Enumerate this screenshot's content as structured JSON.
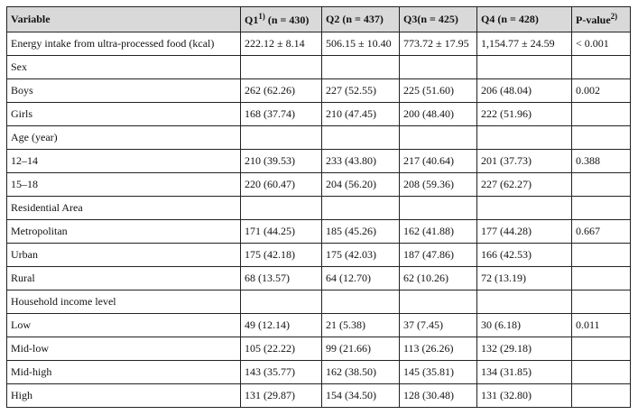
{
  "table": {
    "header": [
      {
        "text": "Variable"
      },
      {
        "text": "Q1",
        "note": "1)",
        "n": "(n = 430)"
      },
      {
        "text": "Q2 (n = 437)"
      },
      {
        "text": "Q3(n = 425)"
      },
      {
        "text": "Q4 (n = 428)"
      },
      {
        "text": "P-value",
        "note": "2)"
      }
    ],
    "rows": [
      [
        "Energy intake from ultra-processed food (kcal)",
        "222.12 ± 8.14",
        "506.15 ± 10.40",
        "773.72 ± 17.95",
        "1,154.77 ± 24.59",
        "< 0.001"
      ],
      [
        "Sex",
        null,
        null,
        null,
        null,
        null
      ],
      [
        "Boys",
        "262 (62.26)",
        "227 (52.55)",
        "225 (51.60)",
        "206 (48.04)",
        "0.002"
      ],
      [
        "Girls",
        "168 (37.74)",
        "210 (47.45)",
        "200 (48.40)",
        "222 (51.96)",
        null
      ],
      [
        "Age (year)",
        null,
        null,
        null,
        null,
        null
      ],
      [
        "12–14",
        "210 (39.53)",
        "233 (43.80)",
        "217 (40.64)",
        "201 (37.73)",
        "0.388"
      ],
      [
        "15–18",
        "220 (60.47)",
        "204 (56.20)",
        "208 (59.36)",
        "227 (62.27)",
        null
      ],
      [
        "Residential Area",
        null,
        null,
        null,
        null,
        null
      ],
      [
        "Metropolitan",
        "171 (44.25)",
        "185 (45.26)",
        "162 (41.88)",
        "177 (44.28)",
        "0.667"
      ],
      [
        "Urban",
        "175 (42.18)",
        "175 (42.03)",
        "187 (47.86)",
        "166 (42.53)",
        null
      ],
      [
        "Rural",
        "68 (13.57)",
        "64 (12.70)",
        "62 (10.26)",
        "72 (13.19)",
        null
      ],
      [
        "Household income level",
        null,
        null,
        null,
        null,
        null
      ],
      [
        "Low",
        "49 (12.14)",
        "21 (5.38)",
        "37 (7.45)",
        "30 (6.18)",
        "0.011"
      ],
      [
        "Mid-low",
        "105 (22.22)",
        "99 (21.66)",
        "113 (26.26)",
        "132 (29.18)",
        null
      ],
      [
        "Mid-high",
        "143 (35.77)",
        "162 (38.50)",
        "145 (35.81)",
        "134 (31.85)",
        null
      ],
      [
        "High",
        "131 (29.87)",
        "154 (34.50)",
        "128 (30.48)",
        "131 (32.80)",
        null
      ]
    ]
  }
}
